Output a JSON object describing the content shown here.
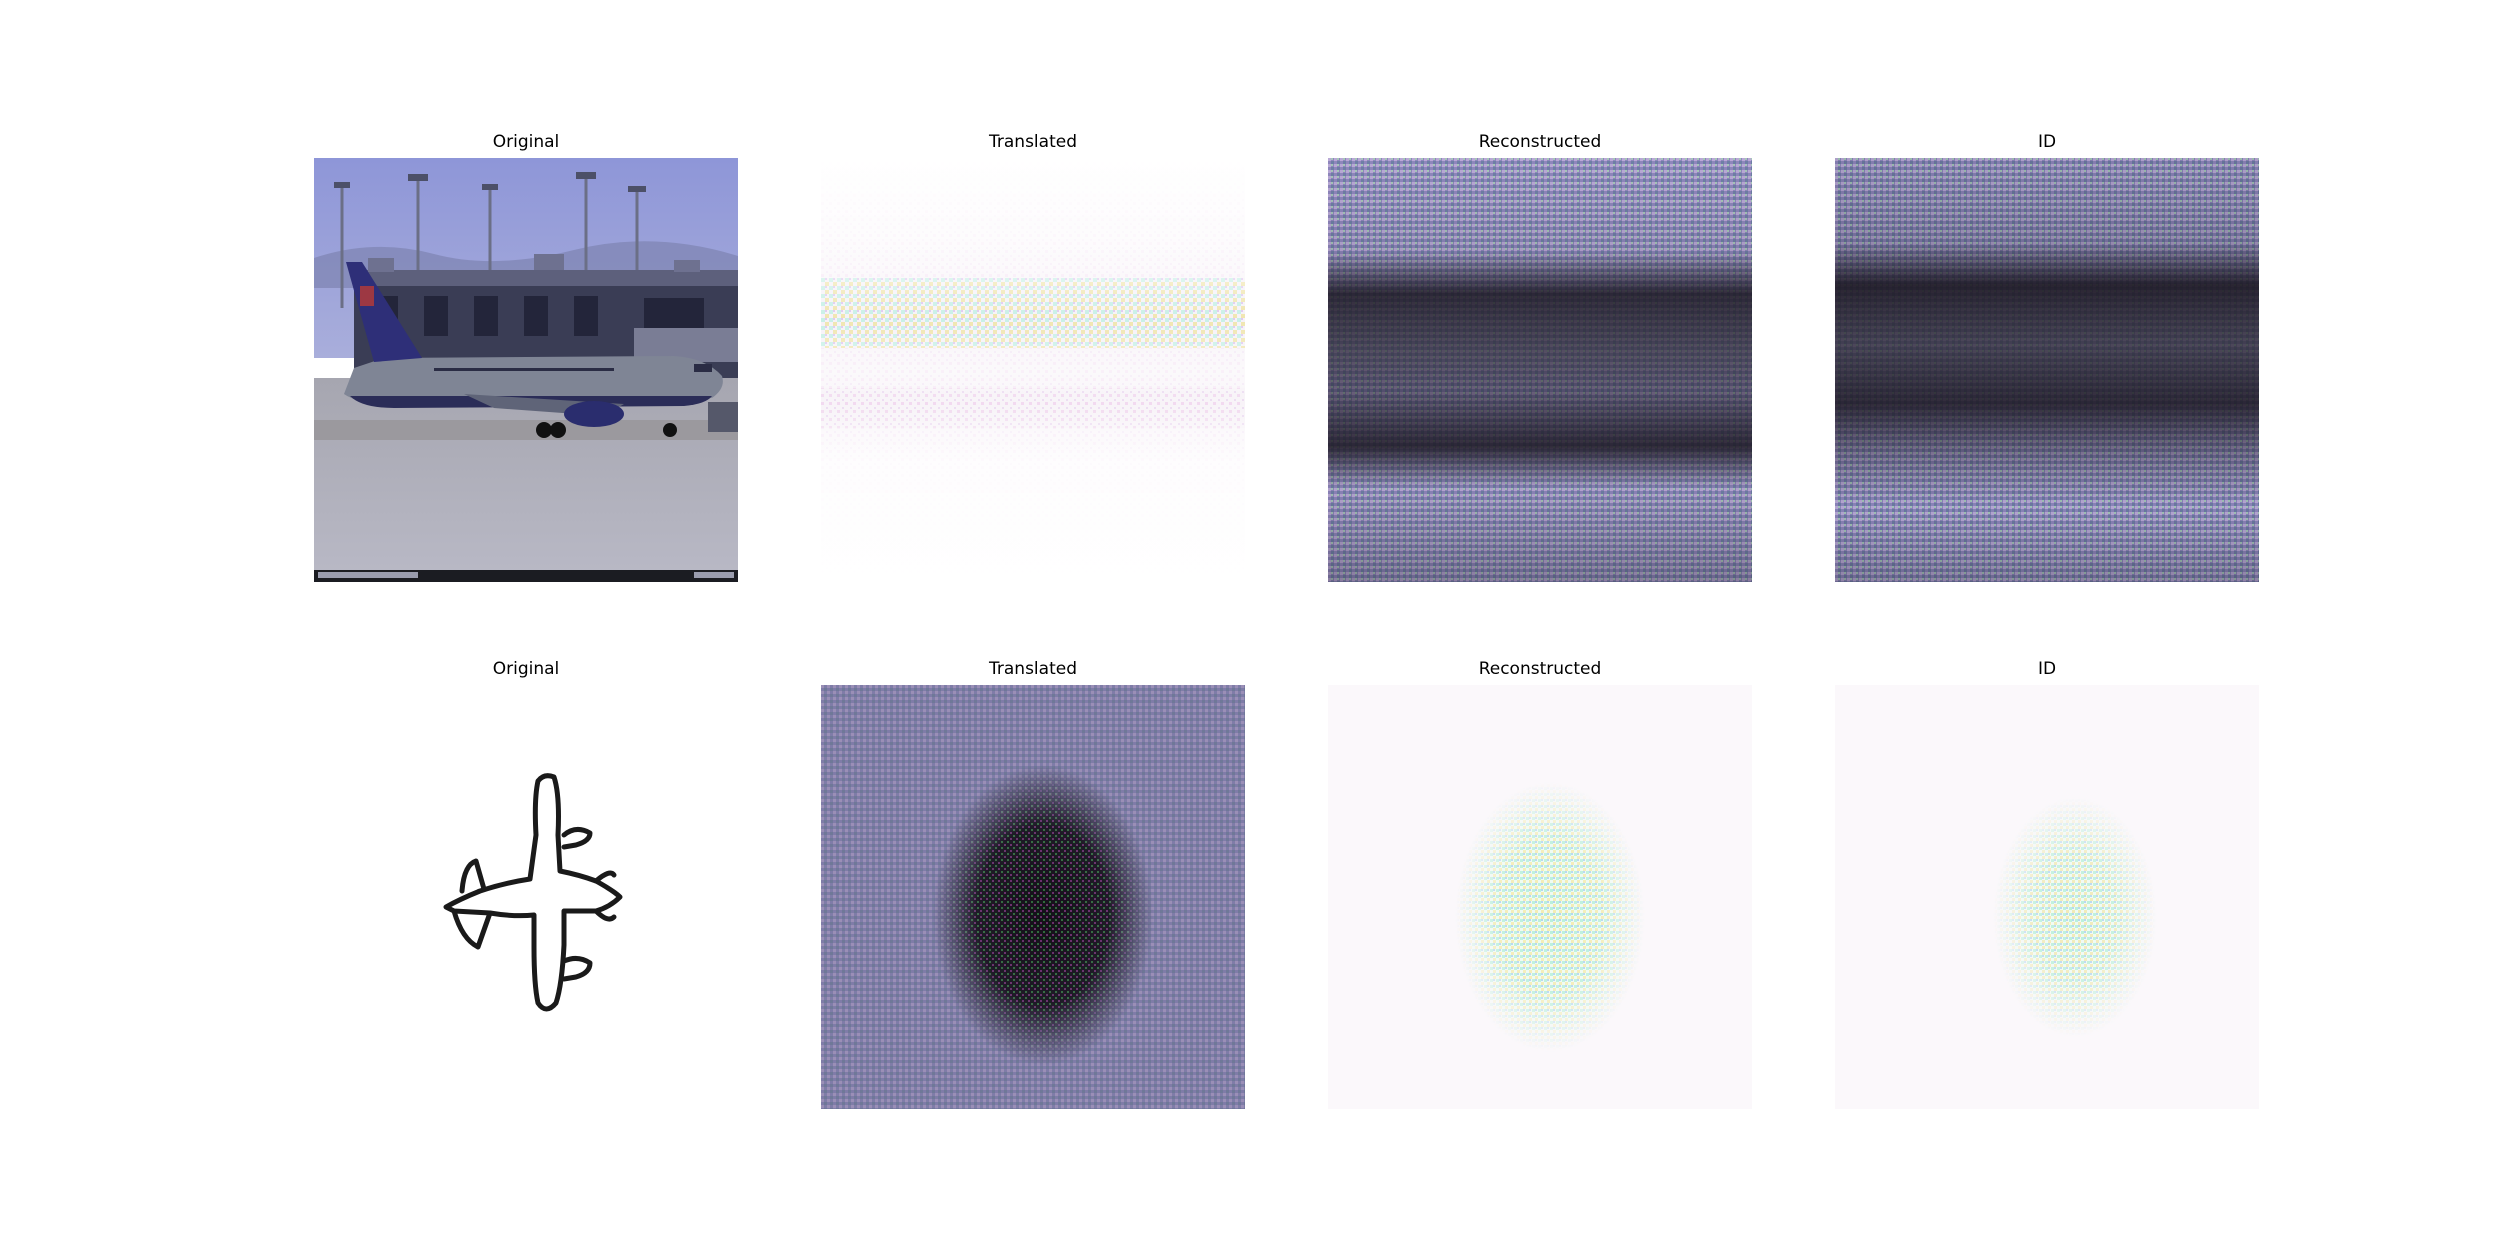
{
  "figure": {
    "rows": [
      {
        "panels": [
          {
            "title": "Original",
            "content": "photo-airliner-at-gate"
          },
          {
            "title": "Translated",
            "content": "faint-white-horizontal-band-noise"
          },
          {
            "title": "Reconstructed",
            "content": "purple-dark-horizontal-band-noise"
          },
          {
            "title": "ID",
            "content": "purple-dark-horizontal-band-noise"
          }
        ]
      },
      {
        "panels": [
          {
            "title": "Original",
            "content": "sketch-airplane-outline"
          },
          {
            "title": "Translated",
            "content": "purple-bg-dark-diamond-blob-noise"
          },
          {
            "title": "Reconstructed",
            "content": "white-bg-faint-diamond-noise"
          },
          {
            "title": "ID",
            "content": "white-bg-faint-diamond-noise"
          }
        ]
      }
    ],
    "colors": {
      "sky": "#9aa0d6",
      "noise_purple": "#8a83b8",
      "dark_band": "#1a1620",
      "panel_white": "#fbf8fb"
    }
  }
}
